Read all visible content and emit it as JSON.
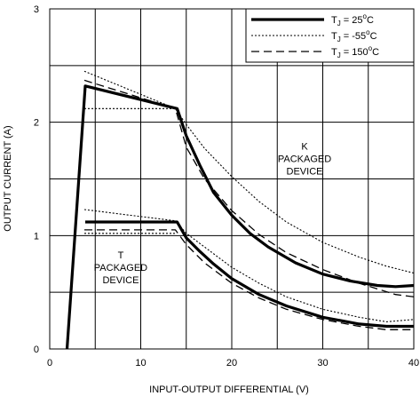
{
  "chart_data": {
    "type": "line",
    "title": "",
    "xlabel": "INPUT-OUTPUT DIFFERENTIAL (V)",
    "ylabel": "OUTPUT CURRENT (A)",
    "xlim": [
      0,
      40
    ],
    "ylim": [
      0,
      3
    ],
    "xticks": [
      {
        "value": 0,
        "label": "0"
      },
      {
        "value": 10,
        "label": "10"
      },
      {
        "value": 20,
        "label": "20"
      },
      {
        "value": 30,
        "label": "30"
      },
      {
        "value": 40,
        "label": "40"
      }
    ],
    "yticks": [
      {
        "value": 0,
        "label": "0"
      },
      {
        "value": 1,
        "label": "1"
      },
      {
        "value": 2,
        "label": "2"
      },
      {
        "value": 3,
        "label": "3"
      }
    ],
    "grid_x": [
      5,
      10,
      15,
      20,
      25,
      30,
      35
    ],
    "grid_y": [
      0.5,
      1.0,
      1.5,
      2.0,
      2.5
    ],
    "grid": true,
    "legend_position": "top-right",
    "legend": [
      {
        "label": "T",
        "sub": "J",
        "suffix": " = 25",
        "sup": "o",
        "unit": "C",
        "style": "solid"
      },
      {
        "label": "T",
        "sub": "J",
        "suffix": " = -55",
        "sup": "o",
        "unit": "C",
        "style": "dotted"
      },
      {
        "label": "T",
        "sub": "J",
        "suffix": " = 150",
        "sup": "o",
        "unit": "C",
        "style": "dashed"
      }
    ],
    "annotations": [
      {
        "lines": [
          "K",
          "PACKAGED",
          "DEVICE"
        ],
        "x": 28,
        "y": 1.68
      },
      {
        "lines": [
          "T",
          "PACKAGED",
          "DEVICE"
        ],
        "x": 7.8,
        "y": 0.72
      }
    ],
    "series": [
      {
        "style": "solid",
        "points": [
          [
            1.9,
            0
          ],
          [
            3.9,
            2.32
          ],
          [
            14,
            2.12
          ],
          [
            15,
            1.88
          ],
          [
            16.5,
            1.62
          ],
          [
            18,
            1.38
          ],
          [
            20,
            1.18
          ],
          [
            22,
            1.02
          ],
          [
            24,
            0.9
          ],
          [
            27,
            0.76
          ],
          [
            30,
            0.66
          ],
          [
            33,
            0.6
          ],
          [
            36,
            0.56
          ],
          [
            38,
            0.55
          ],
          [
            40,
            0.56
          ]
        ]
      },
      {
        "style": "dotted",
        "points": [
          [
            3.8,
            2.45
          ],
          [
            13.8,
            2.12
          ],
          [
            15,
            1.98
          ],
          [
            17,
            1.77
          ],
          [
            20,
            1.52
          ],
          [
            23,
            1.3
          ],
          [
            26,
            1.12
          ],
          [
            30,
            0.94
          ],
          [
            34,
            0.81
          ],
          [
            37,
            0.73
          ],
          [
            40,
            0.67
          ]
        ]
      },
      {
        "style": "dotted",
        "points": [
          [
            3.8,
            2.12
          ],
          [
            13.8,
            2.12
          ]
        ]
      },
      {
        "style": "dashed",
        "points": [
          [
            3.8,
            2.37
          ],
          [
            13.8,
            2.12
          ],
          [
            15,
            1.78
          ],
          [
            17,
            1.5
          ],
          [
            20,
            1.22
          ],
          [
            23,
            1.01
          ],
          [
            26,
            0.85
          ],
          [
            30,
            0.7
          ],
          [
            34,
            0.58
          ],
          [
            38,
            0.48
          ],
          [
            40,
            0.46
          ]
        ]
      },
      {
        "style": "solid",
        "points": [
          [
            3.9,
            1.12
          ],
          [
            14,
            1.12
          ],
          [
            15,
            0.98
          ],
          [
            16.5,
            0.86
          ],
          [
            18,
            0.75
          ],
          [
            20,
            0.62
          ],
          [
            23,
            0.48
          ],
          [
            26,
            0.38
          ],
          [
            30,
            0.28
          ],
          [
            34,
            0.22
          ],
          [
            37,
            0.2
          ],
          [
            40,
            0.2
          ]
        ]
      },
      {
        "style": "dotted",
        "points": [
          [
            3.8,
            1.23
          ],
          [
            13.8,
            1.13
          ],
          [
            15,
            1.02
          ],
          [
            17,
            0.9
          ],
          [
            20,
            0.72
          ],
          [
            23,
            0.58
          ],
          [
            26,
            0.46
          ],
          [
            30,
            0.35
          ],
          [
            34,
            0.28
          ],
          [
            37,
            0.24
          ],
          [
            40,
            0.26
          ]
        ]
      },
      {
        "style": "dotted",
        "points": [
          [
            3.8,
            1.02
          ],
          [
            13.8,
            1.02
          ]
        ]
      },
      {
        "style": "dashed",
        "points": [
          [
            3.8,
            1.05
          ],
          [
            13.8,
            1.05
          ],
          [
            15,
            0.92
          ],
          [
            17,
            0.76
          ],
          [
            20,
            0.58
          ],
          [
            23,
            0.45
          ],
          [
            26,
            0.35
          ],
          [
            30,
            0.26
          ],
          [
            34,
            0.2
          ],
          [
            37,
            0.17
          ],
          [
            40,
            0.17
          ]
        ]
      }
    ]
  }
}
